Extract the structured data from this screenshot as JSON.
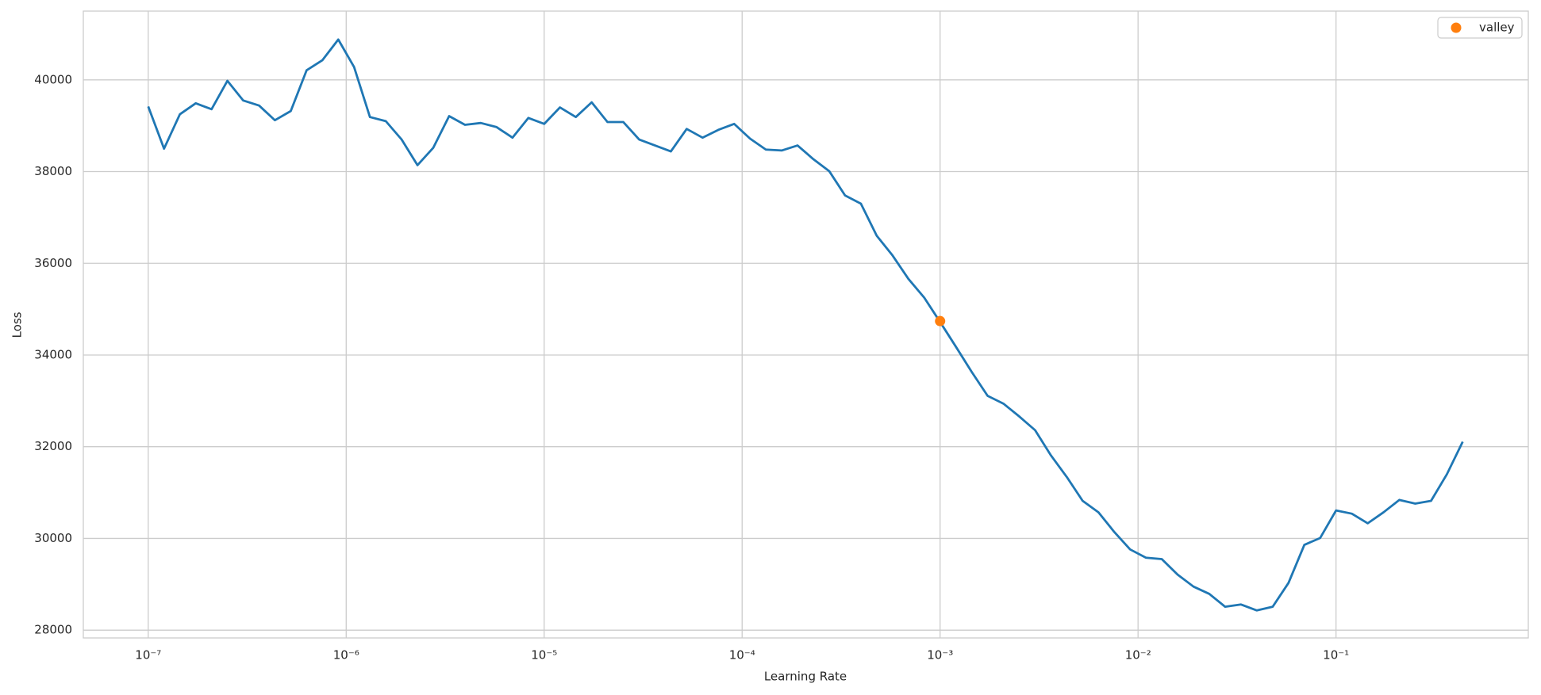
{
  "chart_data": {
    "type": "line",
    "xlabel": "Learning Rate",
    "ylabel": "Loss",
    "xscale": "log",
    "grid": true,
    "legend": "upper right",
    "xlim": [
      4.7e-08,
      0.936
    ],
    "ylim": [
      27830,
      41500
    ],
    "xticks": [
      {
        "value": 1e-07,
        "label": "10⁻⁷"
      },
      {
        "value": 1e-06,
        "label": "10⁻⁶"
      },
      {
        "value": 1e-05,
        "label": "10⁻⁵"
      },
      {
        "value": 0.0001,
        "label": "10⁻⁴"
      },
      {
        "value": 0.001,
        "label": "10⁻³"
      },
      {
        "value": 0.01,
        "label": "10⁻²"
      },
      {
        "value": 0.1,
        "label": "10⁻¹"
      }
    ],
    "yticks": [
      28000,
      30000,
      32000,
      34000,
      36000,
      38000,
      40000
    ],
    "x": [
      1e-07,
      1.202e-07,
      1.445e-07,
      1.738e-07,
      2.089e-07,
      2.512e-07,
      3.02e-07,
      3.631e-07,
      4.365e-07,
      5.248e-07,
      6.31e-07,
      7.586e-07,
      9.12e-07,
      1.096e-06,
      1.318e-06,
      1.585e-06,
      1.905e-06,
      2.291e-06,
      2.754e-06,
      3.311e-06,
      3.981e-06,
      4.786e-06,
      5.754e-06,
      6.918e-06,
      8.318e-06,
      1e-05,
      1.202e-05,
      1.445e-05,
      1.738e-05,
      2.089e-05,
      2.512e-05,
      3.02e-05,
      3.631e-05,
      4.365e-05,
      5.248e-05,
      6.31e-05,
      7.586e-05,
      9.12e-05,
      0.0001096,
      0.0001318,
      0.0001585,
      0.0001905,
      0.0002291,
      0.0002754,
      0.0003311,
      0.0003981,
      0.0004786,
      0.0005754,
      0.0006918,
      0.0008318,
      0.001,
      0.001202,
      0.001445,
      0.001738,
      0.002089,
      0.002512,
      0.00302,
      0.003631,
      0.004365,
      0.005248,
      0.00631,
      0.007586,
      0.00912,
      0.01096,
      0.01318,
      0.01585,
      0.01905,
      0.02291,
      0.02754,
      0.03311,
      0.03981,
      0.04786,
      0.05754,
      0.06918,
      0.08318,
      0.1,
      0.1202,
      0.1445,
      0.1738,
      0.2089,
      0.2512,
      0.302,
      0.3631,
      0.4365
    ],
    "series": [
      {
        "color": "#1f77b4",
        "values": [
          39420,
          38500,
          39250,
          39490,
          39360,
          39980,
          39550,
          39440,
          39120,
          39320,
          40210,
          40430,
          40880,
          40280,
          39190,
          39100,
          38700,
          38140,
          38520,
          39210,
          39020,
          39060,
          38970,
          38740,
          39170,
          39040,
          39400,
          39190,
          39510,
          39080,
          39080,
          38700,
          38570,
          38440,
          38930,
          38740,
          38910,
          39040,
          38720,
          38480,
          38460,
          38570,
          38270,
          38010,
          37480,
          37300,
          36600,
          36170,
          35660,
          35250,
          34720,
          34180,
          33630,
          33110,
          32940,
          32660,
          32360,
          31810,
          31340,
          30820,
          30570,
          30140,
          29760,
          29580,
          29550,
          29210,
          28950,
          28790,
          28510,
          28560,
          28430,
          28510,
          29030,
          29860,
          30010,
          30610,
          30540,
          30330,
          30570,
          30840,
          30760,
          30820,
          31400,
          32110
        ]
      }
    ],
    "points": [
      {
        "name": "valley",
        "color": "#ff7f0e",
        "x": [
          0.001
        ],
        "values": [
          34740
        ]
      }
    ]
  }
}
